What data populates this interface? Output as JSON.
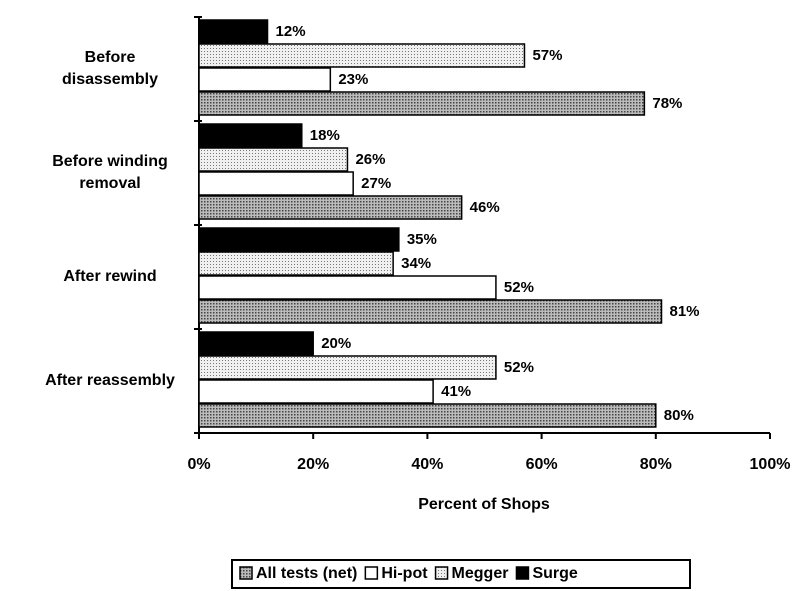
{
  "chart_data": {
    "type": "bar",
    "orientation": "horizontal",
    "x_label": "Percent of Shops",
    "categories": [
      "Before disassembly",
      "Before winding removal",
      "After rewind",
      "After reassembly"
    ],
    "series": [
      {
        "name": "All tests (net)",
        "color": "#8a8a8a",
        "values": [
          78,
          46,
          81,
          80
        ],
        "value_labels": [
          "78%",
          "46%",
          "81%",
          "80%"
        ]
      },
      {
        "name": "Hi-pot",
        "color": "#ffffff",
        "values": [
          23,
          27,
          52,
          41
        ],
        "value_labels": [
          "23%",
          "27%",
          "52%",
          "41%"
        ]
      },
      {
        "name": "Megger",
        "color": "#d9d9d9",
        "values": [
          57,
          26,
          34,
          52
        ],
        "value_labels": [
          "57%",
          "26%",
          "34%",
          "52%"
        ]
      },
      {
        "name": "Surge",
        "color": "#000000",
        "values": [
          12,
          18,
          35,
          20
        ],
        "value_labels": [
          "12%",
          "18%",
          "35%",
          "20%"
        ]
      }
    ],
    "xlim": [
      0,
      100
    ],
    "xticks": [
      {
        "value": 0,
        "label": "0%"
      },
      {
        "value": 20,
        "label": "20%"
      },
      {
        "value": 40,
        "label": "40%"
      },
      {
        "value": 60,
        "label": "60%"
      },
      {
        "value": 80,
        "label": "80%"
      },
      {
        "value": 100,
        "label": "100%"
      }
    ],
    "legend": "bottom"
  }
}
